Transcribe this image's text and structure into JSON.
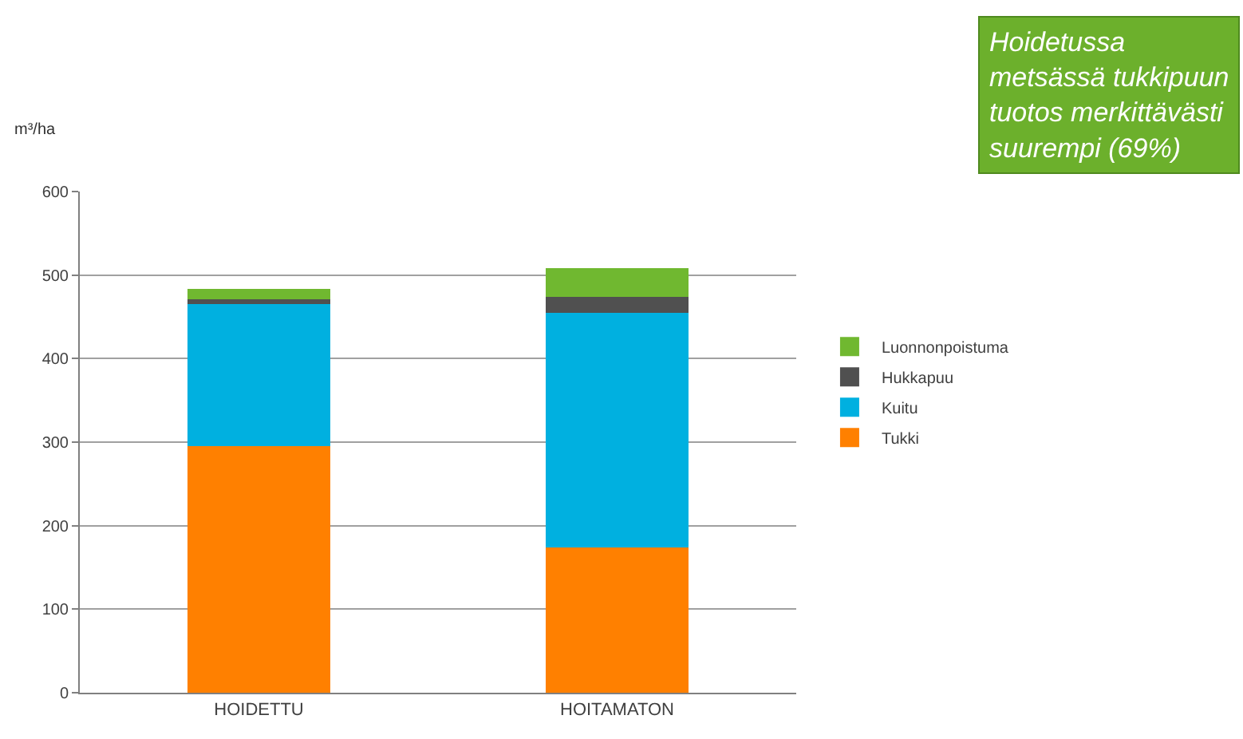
{
  "chart_data": {
    "type": "bar",
    "stacked": true,
    "ylabel": "m³/ha",
    "categories": [
      "HOIDETTU",
      "HOITAMATON"
    ],
    "series": [
      {
        "name": "Tukki",
        "color": "#ff8000",
        "values": [
          295,
          174
        ]
      },
      {
        "name": "Kuitu",
        "color": "#00b0e0",
        "values": [
          170,
          281
        ]
      },
      {
        "name": "Hukkapuu",
        "color": "#505050",
        "values": [
          6,
          19
        ]
      },
      {
        "name": "Luonnonpoistuma",
        "color": "#70b830",
        "values": [
          12,
          34
        ]
      }
    ],
    "ylim": [
      0,
      600
    ],
    "yticks": [
      0,
      100,
      200,
      300,
      400,
      500,
      600
    ],
    "grid": "y",
    "legend": "right",
    "annotations": [
      "Hoidetussa\nmetsässä tukkipuun\ntuotos merkittävästi\nsuurempi (69%)"
    ]
  }
}
